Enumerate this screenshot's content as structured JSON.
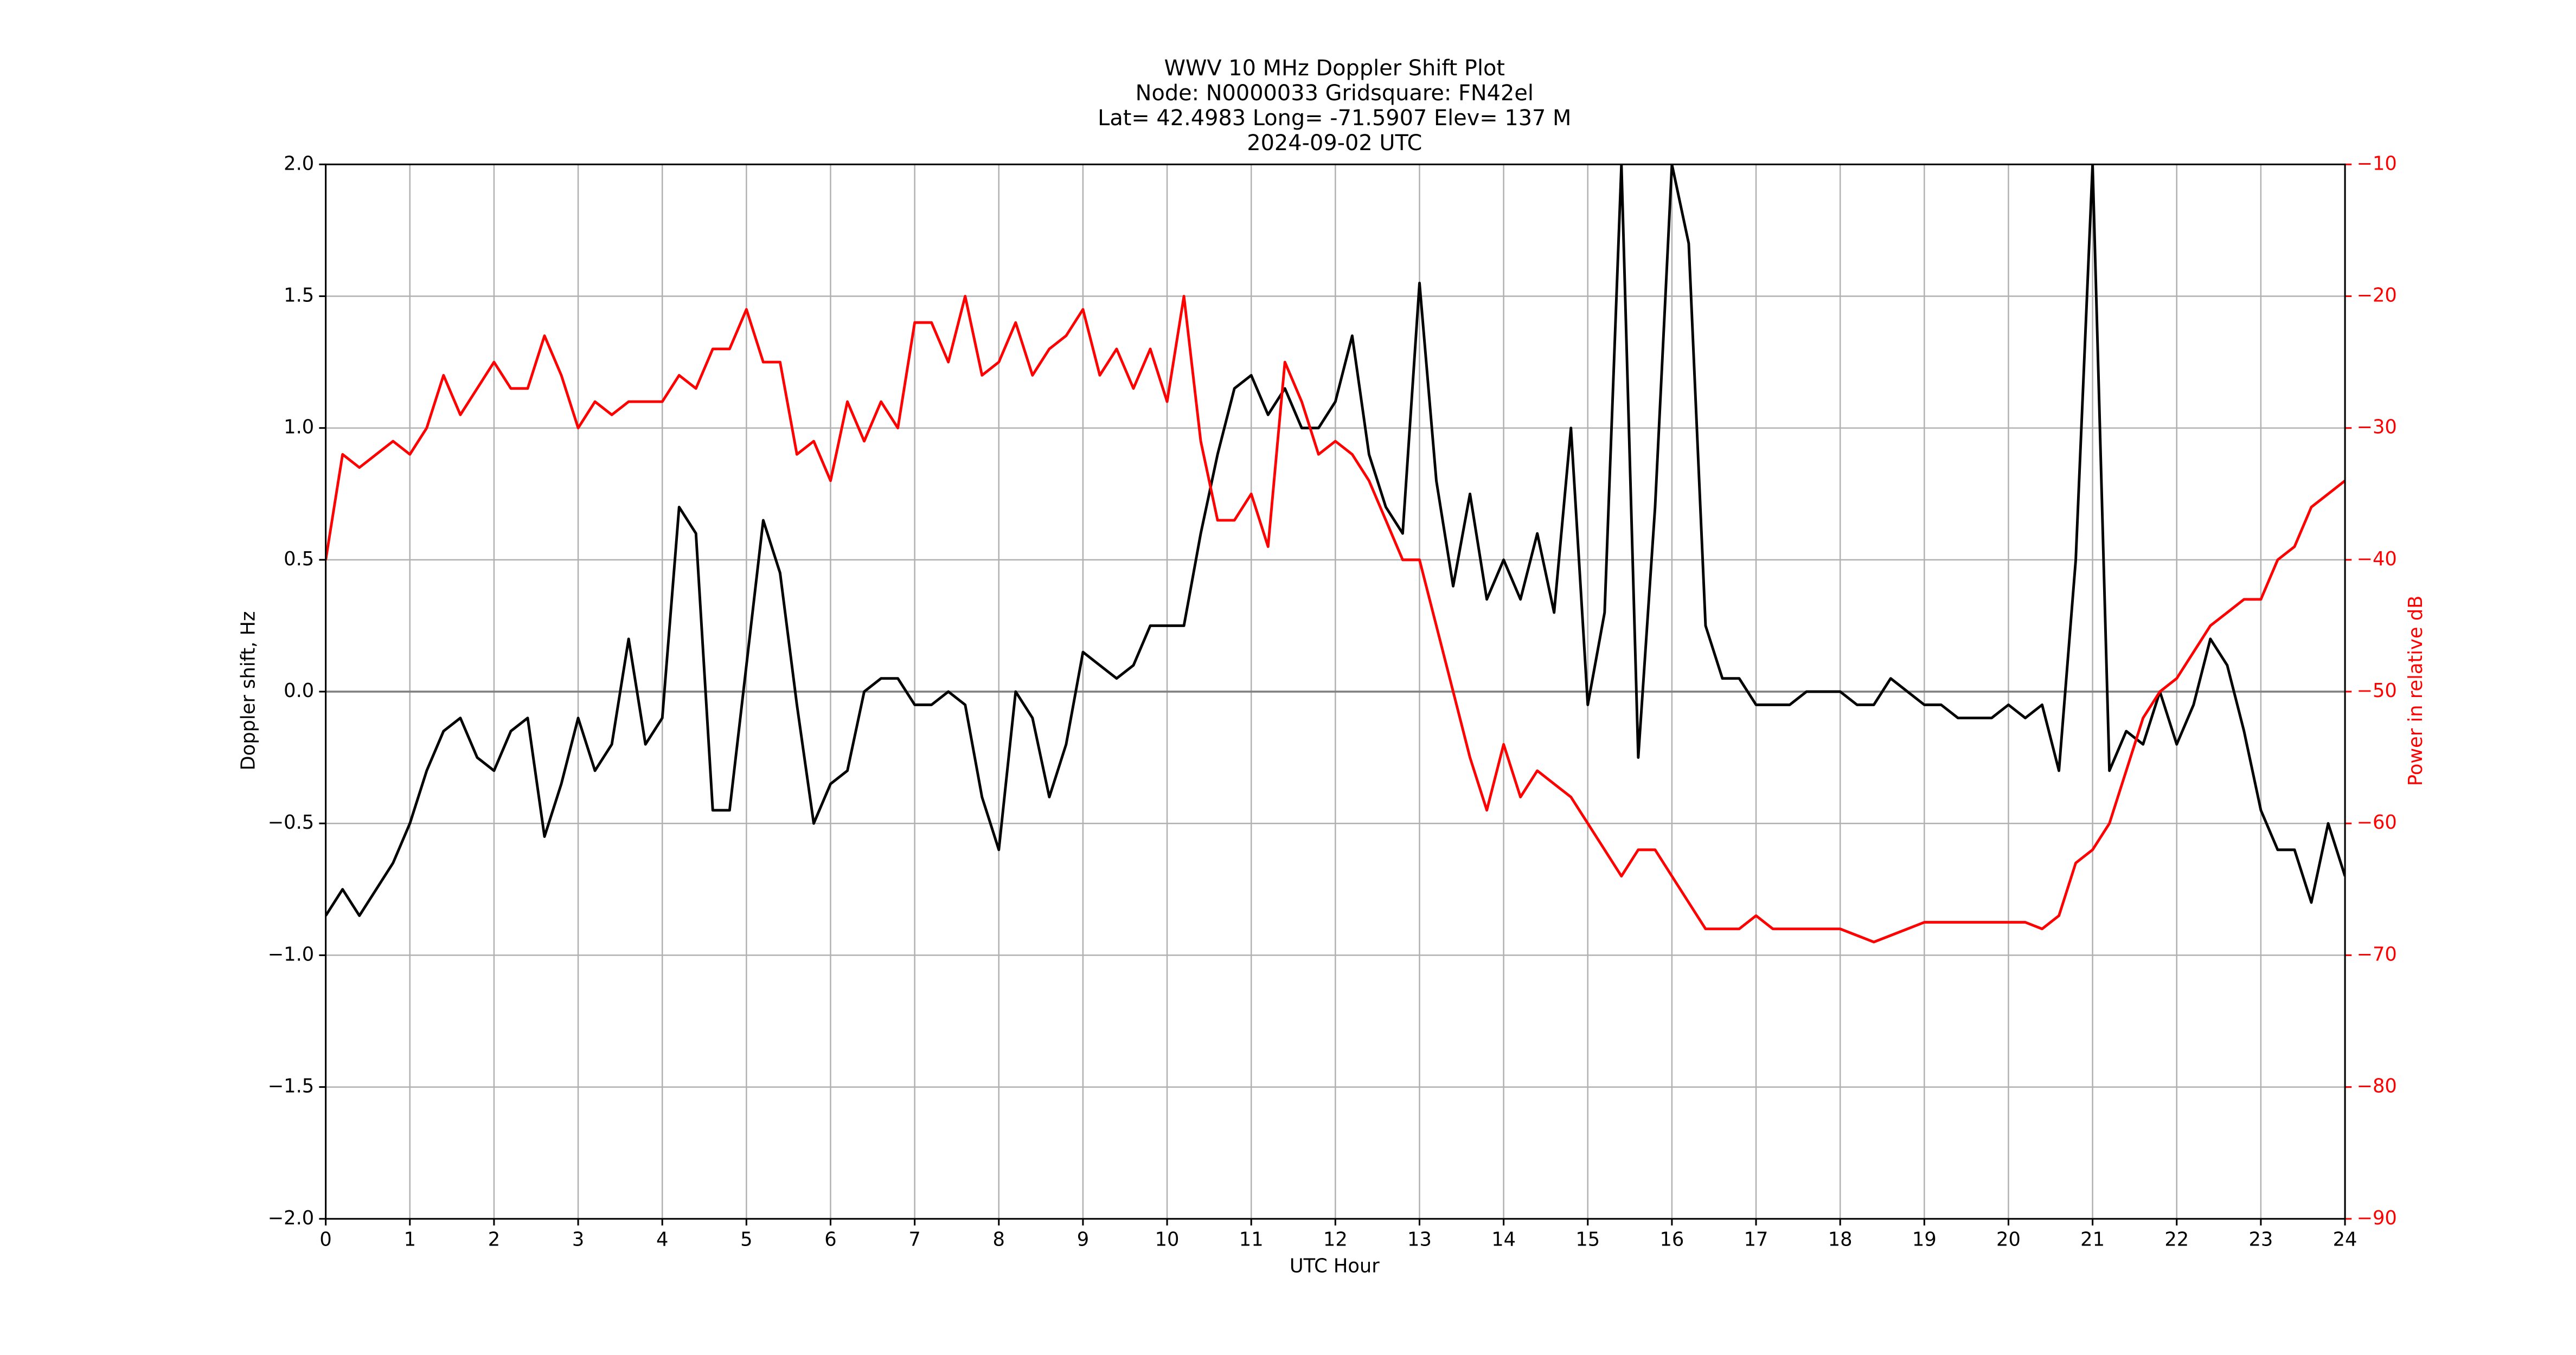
{
  "chart_data": {
    "type": "line",
    "title_lines": [
      "WWV 10 MHz Doppler Shift Plot",
      "Node:  N0000033     Gridsquare:  FN42el",
      "Lat= 42.4983    Long= -71.5907    Elev= 137 M",
      "2024-09-02  UTC"
    ],
    "xlabel": "UTC Hour",
    "ylabel": "Doppler shift, Hz",
    "y2label": "Power in relative dB",
    "grid": true,
    "xlim": [
      0,
      24
    ],
    "xticks": [
      0,
      1,
      2,
      3,
      4,
      5,
      6,
      7,
      8,
      9,
      10,
      11,
      12,
      13,
      14,
      15,
      16,
      17,
      18,
      19,
      20,
      21,
      22,
      23,
      24
    ],
    "ylim": [
      -2,
      2
    ],
    "yticks": [
      {
        "value": -2,
        "label": "−2.0"
      },
      {
        "value": -1.5,
        "label": "−1.5"
      },
      {
        "value": -1,
        "label": "−1.0"
      },
      {
        "value": -0.5,
        "label": "−0.5"
      },
      {
        "value": 0,
        "label": "0.0"
      },
      0.5,
      {
        "value": 1,
        "label": "1.0"
      },
      1.5,
      {
        "value": 2,
        "label": "2.0"
      }
    ],
    "y2lim": [
      -90,
      -10
    ],
    "y2ticks": [
      {
        "value": -90,
        "label": "−90"
      },
      {
        "value": -80,
        "label": "−80"
      },
      {
        "value": -70,
        "label": "−70"
      },
      {
        "value": -60,
        "label": "−60"
      },
      {
        "value": -50,
        "label": "−50"
      },
      {
        "value": -40,
        "label": "−40"
      },
      {
        "value": -30,
        "label": "−30"
      },
      {
        "value": -20,
        "label": "−20"
      },
      {
        "value": -10,
        "label": "−10"
      }
    ],
    "x": [
      0,
      0.2,
      0.4,
      0.6,
      0.8,
      1,
      1.2,
      1.4,
      1.6,
      1.8,
      2,
      2.2,
      2.4,
      2.6,
      2.8,
      3,
      3.2,
      3.4,
      3.6,
      3.8,
      4,
      4.2,
      4.4,
      4.6,
      4.8,
      5,
      5.2,
      5.4,
      5.6,
      5.8,
      6,
      6.2,
      6.4,
      6.6,
      6.8,
      7,
      7.2,
      7.4,
      7.6,
      7.8,
      8,
      8.2,
      8.4,
      8.6,
      8.8,
      9,
      9.2,
      9.4,
      9.6,
      9.8,
      10,
      10.2,
      10.4,
      10.6,
      10.8,
      11,
      11.2,
      11.4,
      11.6,
      11.8,
      12,
      12.2,
      12.4,
      12.6,
      12.8,
      13,
      13.2,
      13.4,
      13.6,
      13.8,
      14,
      14.2,
      14.4,
      14.6,
      14.8,
      15,
      15.2,
      15.4,
      15.6,
      15.8,
      16,
      16.2,
      16.4,
      16.6,
      16.8,
      17,
      17.2,
      17.4,
      17.6,
      17.8,
      18,
      18.2,
      18.4,
      18.6,
      18.8,
      19,
      19.2,
      19.4,
      19.6,
      19.8,
      20,
      20.2,
      20.4,
      20.6,
      20.8,
      21,
      21.2,
      21.4,
      21.6,
      21.8,
      22,
      22.2,
      22.4,
      22.6,
      22.8,
      23,
      23.2,
      23.4,
      23.6,
      23.8,
      24
    ],
    "series": [
      {
        "color": "#000000",
        "axis": "y",
        "values": [
          -0.85,
          -0.75,
          -0.85,
          -0.75,
          -0.65,
          -0.5,
          -0.3,
          -0.15,
          -0.1,
          -0.25,
          -0.3,
          -0.15,
          -0.1,
          -0.55,
          -0.35,
          -0.1,
          -0.3,
          -0.2,
          0.2,
          -0.2,
          -0.1,
          0.7,
          0.6,
          -0.45,
          -0.45,
          0.1,
          0.65,
          0.45,
          -0.05,
          -0.5,
          -0.35,
          -0.3,
          0,
          0.05,
          0.05,
          -0.05,
          -0.05,
          0,
          -0.05,
          -0.4,
          -0.6,
          0,
          -0.1,
          -0.4,
          -0.2,
          0.15,
          0.1,
          0.05,
          0.1,
          0.25,
          0.25,
          0.25,
          0.6,
          0.9,
          1.15,
          1.2,
          1.05,
          1.15,
          1,
          1,
          1.1,
          1.35,
          0.9,
          0.7,
          0.6,
          1.55,
          0.8,
          0.4,
          0.75,
          0.35,
          0.5,
          0.35,
          0.6,
          0.3,
          1,
          -0.05,
          0.3,
          2,
          -0.25,
          0.7,
          2,
          1.7,
          0.25,
          0.05,
          0.05,
          -0.05,
          -0.05,
          -0.05,
          0,
          0,
          0,
          -0.05,
          -0.05,
          0.05,
          0,
          -0.05,
          -0.05,
          -0.1,
          -0.1,
          -0.1,
          -0.05,
          -0.1,
          -0.05,
          -0.3,
          0.5,
          2,
          -0.3,
          -0.15,
          -0.2,
          0,
          -0.2,
          -0.05,
          0.2,
          0.1,
          -0.15,
          -0.45,
          -0.6,
          -0.6,
          -0.8,
          -0.5,
          -0.7
        ]
      },
      {
        "color": "#ff0000",
        "axis": "y2",
        "values": [
          -40,
          -32,
          -33,
          -32,
          -31,
          -32,
          -30,
          -26,
          -29,
          -27,
          -25,
          -27,
          -27,
          -23,
          -26,
          -30,
          -28,
          -29,
          -28,
          -28,
          -28,
          -26,
          -27,
          -24,
          -24,
          -21,
          -25,
          -25,
          -32,
          -31,
          -34,
          -28,
          -31,
          -28,
          -30,
          -22,
          -22,
          -25,
          -20,
          -26,
          -25,
          -22,
          -26,
          -24,
          -23,
          -21,
          -26,
          -24,
          -27,
          -24,
          -28,
          -20,
          -31,
          -37,
          -37,
          -35,
          -39,
          -25,
          -28,
          -32,
          -31,
          -32,
          -34,
          -37,
          -40,
          -40,
          -45,
          -50,
          -55,
          -59,
          -54,
          -58,
          -56,
          -57,
          -58,
          -60,
          -62,
          -64,
          -62,
          -62,
          -64,
          -66,
          -68,
          -68,
          -68,
          -67,
          -68,
          -68,
          -68,
          -68,
          -68,
          -68.5,
          -69,
          -68.5,
          -68,
          -67.5,
          -67.5,
          -67.5,
          -67.5,
          -67.5,
          -67.5,
          -67.5,
          -68,
          -67,
          -63,
          -62,
          -60,
          -56,
          -52,
          -50,
          -49,
          -47,
          -45,
          -44,
          -43,
          -43,
          -40,
          -39,
          -36,
          -35,
          -34
        ]
      }
    ]
  }
}
